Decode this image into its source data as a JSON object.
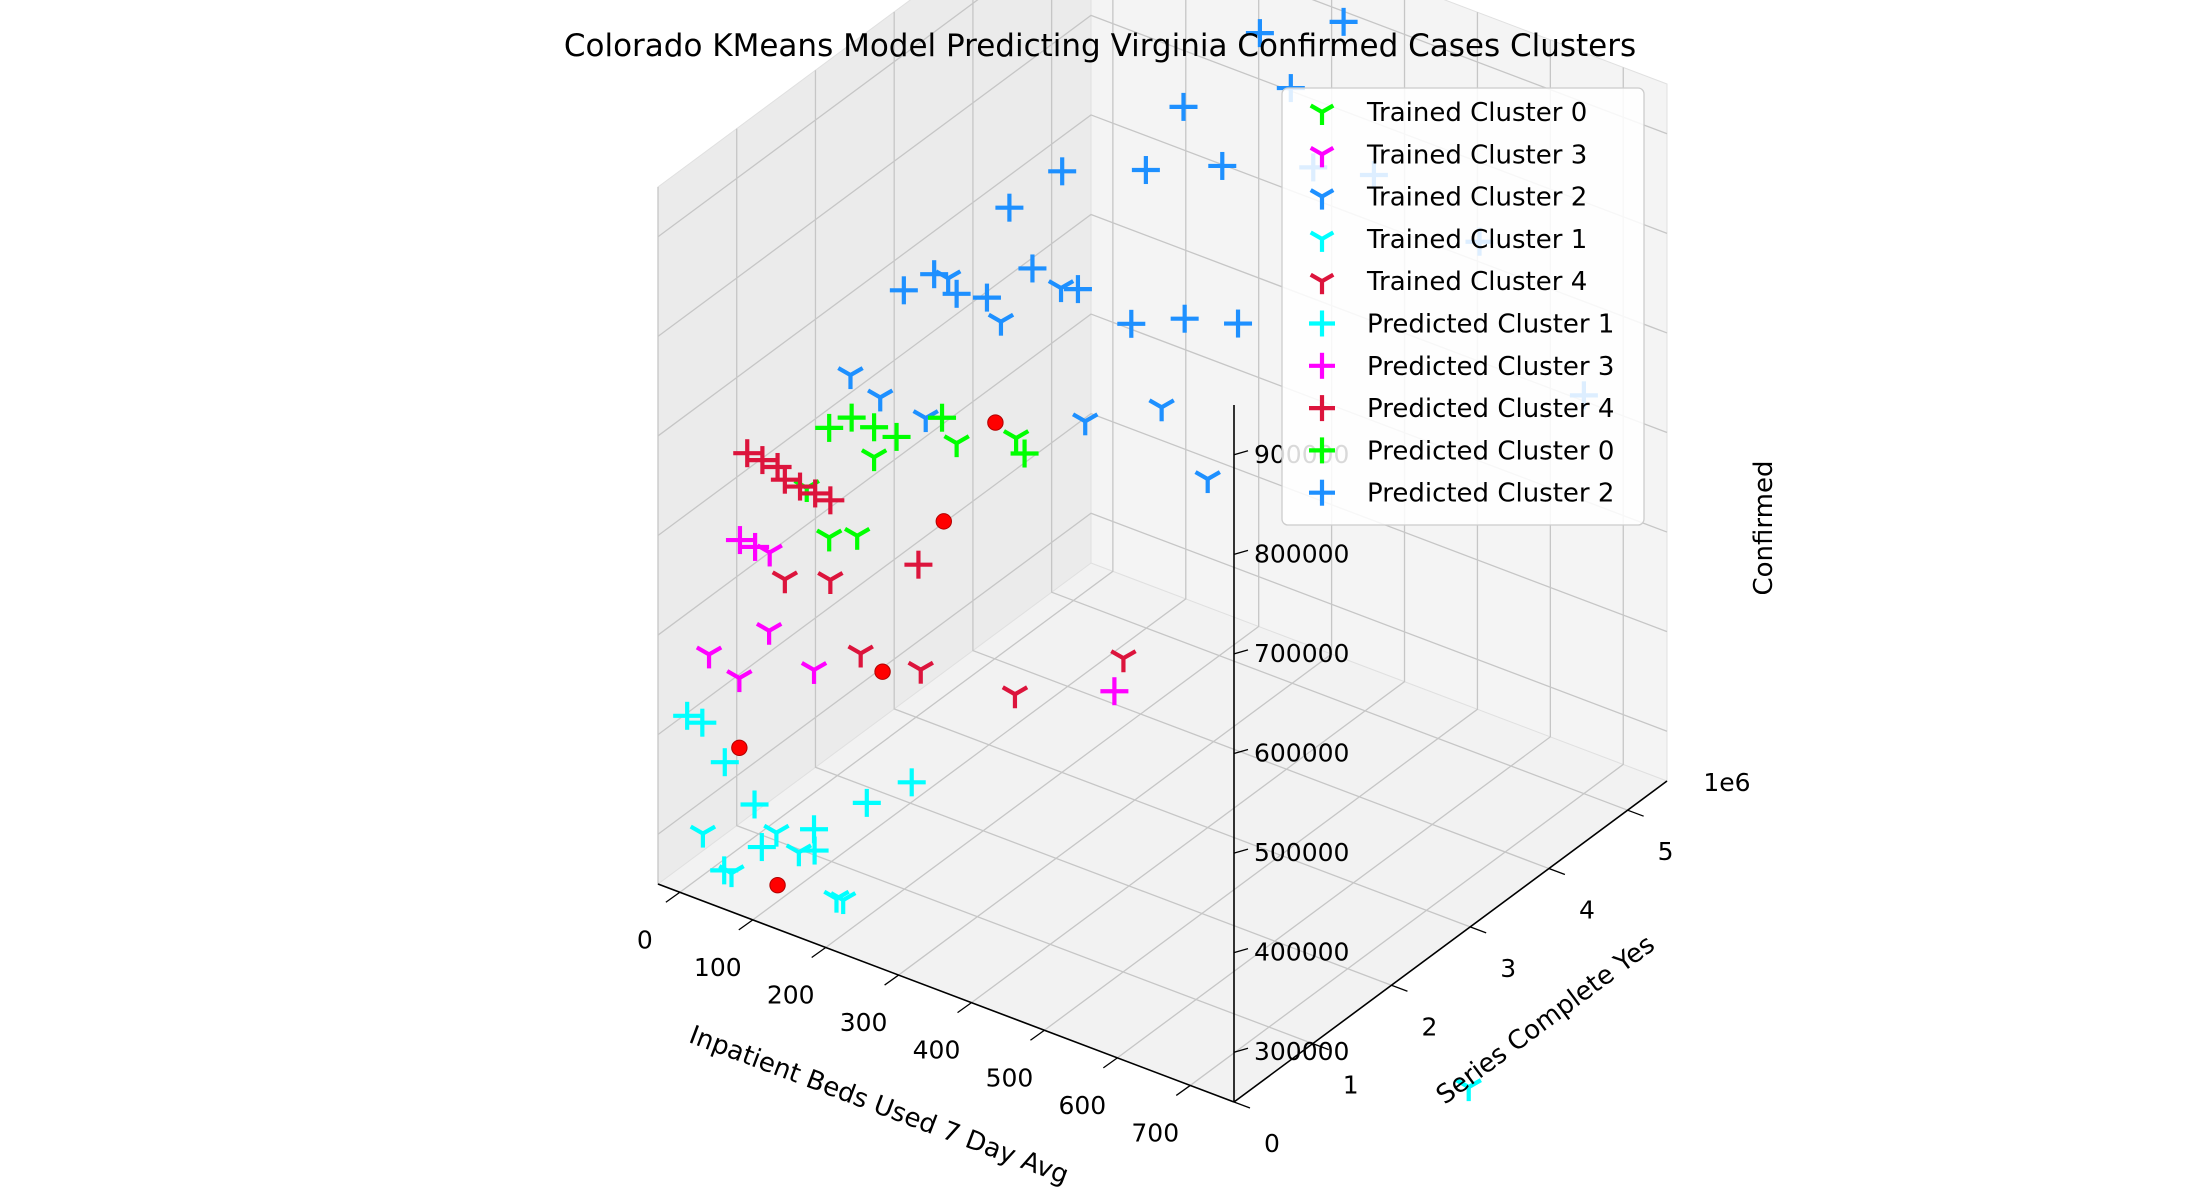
{
  "chart_data": {
    "type": "scatter",
    "title": "Colorado KMeans Model Predicting Virginia Confirmed Cases Clusters",
    "xlabel": "Inpatient Beds Used 7 Day Avg",
    "ylabel": "Series Complete Yes",
    "zlabel": "Confirmed",
    "y_offset_label": "1e6",
    "xlim": [
      -30,
      760
    ],
    "ylim": [
      0,
      5.5
    ],
    "zlim": [
      250000,
      950000
    ],
    "x_ticks": [
      0,
      100,
      200,
      300,
      400,
      500,
      600,
      700
    ],
    "y_ticks": [
      0,
      1,
      2,
      3,
      4,
      5
    ],
    "z_ticks": [
      300000,
      400000,
      500000,
      600000,
      700000,
      800000,
      900000
    ],
    "grid": true,
    "legend_position": "top-right",
    "series": [
      {
        "name": "Trained Cluster 0",
        "marker": "tri_down",
        "color": "#00ff00",
        "points": [
          [
            120,
            0.5,
            660000
          ],
          [
            200,
            0.4,
            640000
          ],
          [
            140,
            0.6,
            610000
          ],
          [
            250,
            1.2,
            700000
          ],
          [
            180,
            0.8,
            690000
          ],
          [
            310,
            1.4,
            710000
          ]
        ]
      },
      {
        "name": "Trained Cluster 3",
        "marker": "tri_down",
        "color": "#ff00ff",
        "points": [
          [
            40,
            0.0,
            500000
          ],
          [
            60,
            0.2,
            470000
          ],
          [
            90,
            0.3,
            520000
          ],
          [
            130,
            0.5,
            480000
          ],
          [
            80,
            0.4,
            590000
          ]
        ]
      },
      {
        "name": "Trained Cluster 2",
        "marker": "tri_down",
        "color": "#1e90ff",
        "points": [
          [
            180,
            0.5,
            790000
          ],
          [
            210,
            0.6,
            770000
          ],
          [
            240,
            0.9,
            740000
          ],
          [
            300,
            1.3,
            830000
          ],
          [
            340,
            2.0,
            700000
          ],
          [
            380,
            2.6,
            690000
          ],
          [
            350,
            1.6,
            860000
          ],
          [
            260,
            1.0,
            880000
          ],
          [
            400,
            3.0,
            600000
          ]
        ]
      },
      {
        "name": "Trained Cluster 1",
        "marker": "tri_down",
        "color": "#00ffff",
        "points": [
          [
            10,
            0.2,
            300000
          ],
          [
            60,
            0.1,
            280000
          ],
          [
            100,
            0.3,
            320000
          ],
          [
            150,
            0.6,
            250000
          ],
          [
            170,
            0.5,
            260000
          ],
          [
            120,
            0.4,
            300000
          ],
          [
            650,
            4.0,
            0
          ]
        ]
      },
      {
        "name": "Trained Cluster 4",
        "marker": "tri_down",
        "color": "#dc143c",
        "points": [
          [
            90,
            0.5,
            560000
          ],
          [
            120,
            0.8,
            550000
          ],
          [
            140,
            1.0,
            470000
          ],
          [
            190,
            1.3,
            450000
          ],
          [
            330,
            1.2,
            470000
          ],
          [
            360,
            2.3,
            450000
          ]
        ]
      },
      {
        "name": "Predicted Cluster 1",
        "marker": "plus",
        "color": "#00ffff",
        "points": [
          [
            10,
            0.0,
            430000
          ],
          [
            20,
            0.1,
            420000
          ],
          [
            40,
            0.2,
            380000
          ],
          [
            70,
            0.3,
            340000
          ],
          [
            80,
            0.3,
            300000
          ],
          [
            130,
            0.5,
            320000
          ],
          [
            170,
            0.8,
            340000
          ],
          [
            210,
            1.0,
            360000
          ],
          [
            120,
            0.6,
            290000
          ],
          [
            50,
            0.1,
            280000
          ]
        ]
      },
      {
        "name": "Predicted Cluster 3",
        "marker": "plus",
        "color": "#ff00ff",
        "points": [
          [
            50,
            0.3,
            600000
          ],
          [
            60,
            0.4,
            590000
          ],
          [
            380,
            2.0,
            440000
          ]
        ]
      },
      {
        "name": "Predicted Cluster 4",
        "marker": "plus",
        "color": "#dc143c",
        "points": [
          [
            60,
            0.3,
            690000
          ],
          [
            70,
            0.4,
            680000
          ],
          [
            80,
            0.5,
            670000
          ],
          [
            90,
            0.5,
            660000
          ],
          [
            100,
            0.6,
            650000
          ],
          [
            110,
            0.7,
            640000
          ],
          [
            120,
            0.8,
            630000
          ],
          [
            230,
            0.9,
            590000
          ]
        ]
      },
      {
        "name": "Predicted Cluster 0",
        "marker": "plus",
        "color": "#00ff00",
        "points": [
          [
            140,
            0.6,
            720000
          ],
          [
            160,
            0.7,
            730000
          ],
          [
            180,
            0.8,
            720000
          ],
          [
            200,
            0.9,
            710000
          ],
          [
            230,
            1.2,
            720000
          ],
          [
            300,
            1.6,
            680000
          ]
        ]
      },
      {
        "name": "Predicted Cluster 2",
        "marker": "plus",
        "color": "#1e90ff",
        "points": [
          [
            210,
            0.9,
            860000
          ],
          [
            230,
            1.1,
            870000
          ],
          [
            250,
            1.2,
            850000
          ],
          [
            270,
            1.4,
            840000
          ],
          [
            300,
            1.7,
            860000
          ],
          [
            330,
            2.0,
            830000
          ],
          [
            360,
            2.4,
            780000
          ],
          [
            390,
            2.8,
            770000
          ],
          [
            420,
            3.2,
            750000
          ],
          [
            480,
            3.6,
            900000
          ],
          [
            520,
            4.0,
            880000
          ],
          [
            600,
            4.6,
            800000
          ],
          [
            700,
            5.0,
            650000
          ],
          [
            290,
            1.5,
            930000
          ],
          [
            330,
            1.8,
            960000
          ],
          [
            380,
            2.4,
            940000
          ],
          [
            420,
            3.0,
            920000
          ],
          [
            460,
            3.5,
            980000
          ],
          [
            410,
            2.6,
            1000000
          ],
          [
            450,
            3.2,
            1050000
          ],
          [
            500,
            3.8,
            1040000
          ]
        ]
      },
      {
        "name": "",
        "marker": "circle",
        "color": "#ff0000",
        "points": [
          [
            60,
            0.2,
            400000
          ],
          [
            80,
            0.5,
            250000
          ],
          [
            170,
            1.0,
            460000
          ],
          [
            200,
            1.5,
            590000
          ],
          [
            260,
            1.6,
            700000
          ]
        ]
      }
    ]
  }
}
